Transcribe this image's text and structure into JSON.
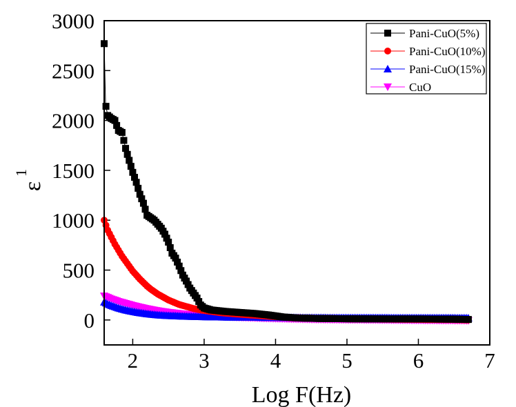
{
  "chart_data": {
    "type": "scatter",
    "title": "",
    "xlabel": "Log F(Hz)",
    "ylabel_symbol": "ε",
    "ylabel_superscript": "1",
    "xlim": [
      1.6,
      7
    ],
    "ylim": [
      -250,
      3000
    ],
    "xticks": [
      2,
      3,
      4,
      5,
      6,
      7
    ],
    "yticks": [
      0,
      500,
      1000,
      1500,
      2000,
      2500,
      3000
    ],
    "grid": false,
    "legend_position": "top-right",
    "series": [
      {
        "name": "Pani-CuO(5%)",
        "color": "#000000",
        "marker": "square",
        "x": [
          1.6,
          1.62,
          1.65,
          1.7,
          1.75,
          1.8,
          1.85,
          1.9,
          1.95,
          2.0,
          2.05,
          2.1,
          2.15,
          2.2,
          2.3,
          2.4,
          2.45,
          2.5,
          2.55,
          2.6,
          2.65,
          2.7,
          2.75,
          2.8,
          2.85,
          2.9,
          2.95,
          3.0,
          3.1,
          3.3,
          3.5,
          3.7,
          3.9,
          4.1,
          4.3,
          4.6,
          5.0,
          5.5,
          6.0,
          6.5,
          6.7
        ],
        "y": [
          2770,
          2160,
          2050,
          2020,
          2000,
          1900,
          1880,
          1720,
          1600,
          1480,
          1380,
          1260,
          1170,
          1050,
          1000,
          920,
          860,
          780,
          670,
          620,
          540,
          450,
          390,
          320,
          270,
          220,
          150,
          120,
          100,
          85,
          75,
          65,
          50,
          30,
          20,
          15,
          12,
          10,
          10,
          8,
          5
        ]
      },
      {
        "name": "Pani-CuO(10%)",
        "color": "#ff0000",
        "marker": "circle",
        "x": [
          1.6,
          1.65,
          1.7,
          1.75,
          1.8,
          1.85,
          1.9,
          1.95,
          2.0,
          2.05,
          2.1,
          2.15,
          2.2,
          2.25,
          2.3,
          2.35,
          2.4,
          2.45,
          2.5,
          2.55,
          2.6,
          2.65,
          2.7,
          2.75,
          2.8,
          2.85,
          2.9,
          2.95,
          3.0,
          3.1,
          3.2,
          3.4,
          3.6,
          3.8,
          4.0,
          4.2,
          4.5,
          5.0,
          5.5,
          6.0,
          6.5,
          6.7
        ],
        "y": [
          1000,
          900,
          830,
          760,
          700,
          640,
          590,
          540,
          490,
          450,
          410,
          375,
          340,
          310,
          285,
          260,
          240,
          220,
          200,
          185,
          170,
          155,
          145,
          135,
          125,
          115,
          108,
          100,
          95,
          85,
          75,
          62,
          52,
          42,
          32,
          25,
          18,
          12,
          8,
          5,
          3,
          0
        ]
      },
      {
        "name": "Pani-CuO(15%)",
        "color": "#0000ff",
        "marker": "triangle-up",
        "x": [
          1.6,
          1.65,
          1.7,
          1.8,
          1.9,
          2.0,
          2.1,
          2.2,
          2.3,
          2.4,
          2.5,
          2.7,
          2.9,
          3.1,
          3.4,
          3.8,
          4.2,
          4.6,
          5.0,
          5.5,
          6.0,
          6.5,
          6.7
        ],
        "y": [
          180,
          160,
          145,
          120,
          100,
          85,
          72,
          62,
          54,
          48,
          44,
          38,
          34,
          31,
          28,
          26,
          24,
          23,
          22,
          22,
          21,
          21,
          20
        ]
      },
      {
        "name": "CuO",
        "color": "#ff00ff",
        "marker": "triangle-down",
        "x": [
          1.6,
          1.65,
          1.7,
          1.75,
          1.8,
          1.9,
          2.0,
          2.1,
          2.2,
          2.3,
          2.4,
          2.5,
          2.7,
          2.9,
          3.1,
          3.4,
          3.8,
          4.2,
          4.6,
          5.0,
          5.5,
          6.0,
          6.5,
          6.7
        ],
        "y": [
          240,
          225,
          210,
          198,
          185,
          165,
          145,
          128,
          112,
          98,
          86,
          76,
          60,
          48,
          38,
          28,
          18,
          10,
          5,
          2,
          0,
          -3,
          -5,
          -6
        ]
      }
    ]
  }
}
